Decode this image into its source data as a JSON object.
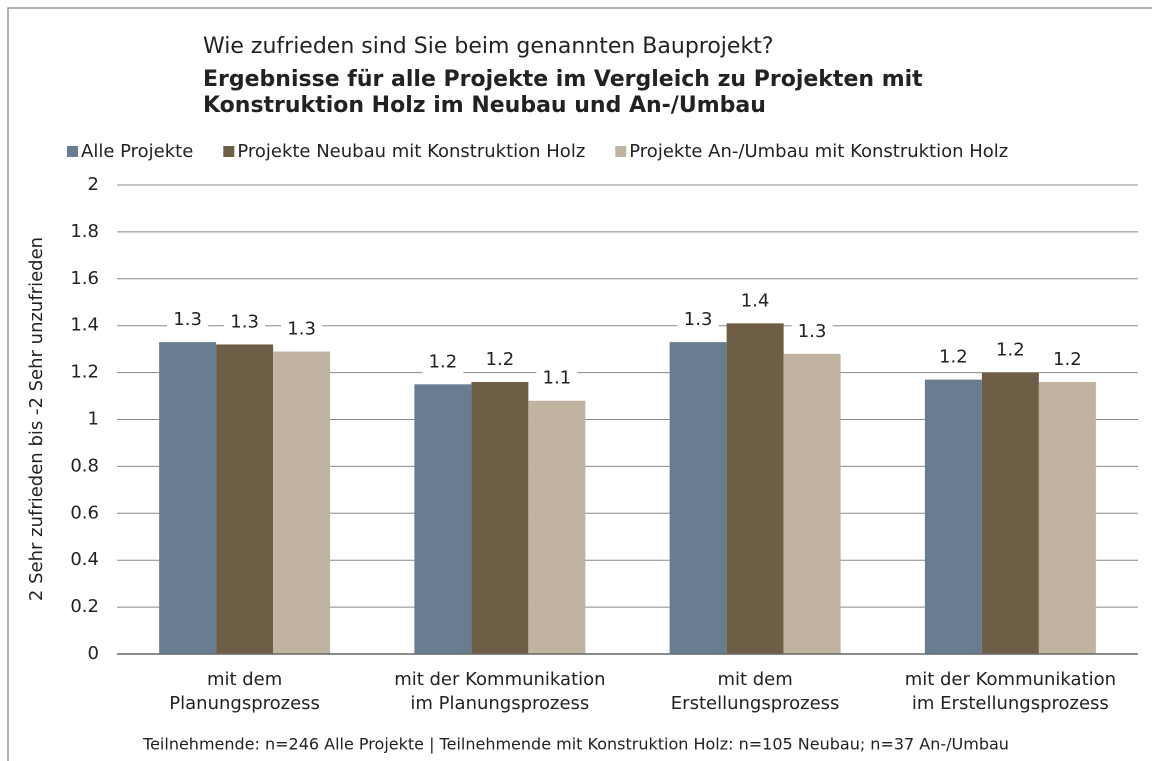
{
  "chart_data": {
    "type": "bar",
    "title": "Wie zufrieden sind Sie beim genannten Bauprojekt?",
    "subtitle": [
      "Ergebnisse für alle Projekte im Vergleich zu Projekten mit",
      "Konstruktion Holz im Neubau und An-/Umbau"
    ],
    "y_label": "2 Sehr zufrieden bis -2 Sehr unzufrieden",
    "footnote": "Teilnehmende: n=246 Alle Projekte  | Teilnehmende mit Konstruktion Holz: n=105 Neubau; n=37 An-/Umbau",
    "categories": [
      [
        "mit dem",
        "Planungsprozess"
      ],
      [
        "mit der Kommunikation",
        "im Planungsprozess"
      ],
      [
        "mit dem",
        "Erstellungsprozess"
      ],
      [
        "mit der Kommunikation",
        "im Erstellungsprozess"
      ]
    ],
    "series": [
      {
        "name": "Alle Projekte",
        "color": "#687d8f",
        "values": [
          1.33,
          1.15,
          1.33,
          1.17
        ],
        "value_labels": [
          "1.3",
          "1.2",
          "1.3",
          "1.2"
        ]
      },
      {
        "name": "Projekte Neubau mit Konstruktion Holz",
        "color": "#6e5e45",
        "values": [
          1.32,
          1.16,
          1.41,
          1.2
        ],
        "value_labels": [
          "1.3",
          "1.2",
          "1.4",
          "1.2"
        ]
      },
      {
        "name": "Projekte An-/Umbau mit Konstruktion Holz",
        "color": "#c0b39f",
        "values": [
          1.29,
          1.08,
          1.28,
          1.16
        ],
        "value_labels": [
          "1.3",
          "1.1",
          "1.3",
          "1.2"
        ]
      }
    ],
    "ylim": [
      0,
      2
    ],
    "yticks": [
      0,
      0.2,
      0.4,
      0.6,
      0.8,
      1,
      1.2,
      1.4,
      1.6,
      1.8,
      2
    ],
    "grid": true,
    "legend": "top"
  }
}
